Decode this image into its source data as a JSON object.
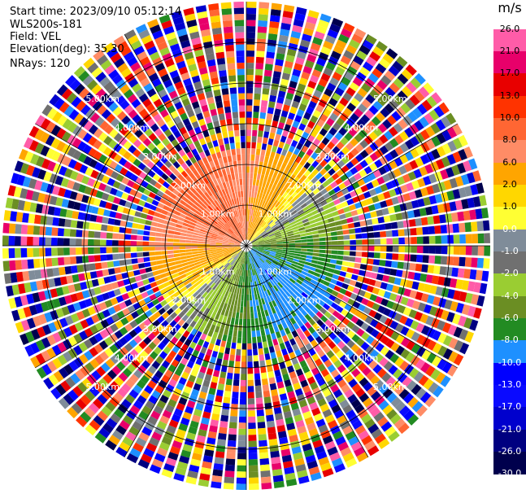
{
  "header": {
    "start_time": "Start time: 2023/09/10 05:12:14",
    "instrument": "WLS200s-181",
    "field": "Field: VEL",
    "elevation": "Elevation(deg): 35.30",
    "nrays": "NRays: 120"
  },
  "colorbar": {
    "unit": "m/s",
    "ticks": [
      "26.0",
      "21.0",
      "17.0",
      "13.0",
      "10.0",
      "8.0",
      "6.0",
      "2.0",
      "1.0",
      "0.0",
      "-1.0",
      "-2.0",
      "-4.0",
      "-6.0",
      "-8.0",
      "-10.0",
      "-13.0",
      "-17.0",
      "-21.0",
      "-26.0",
      "-30.0"
    ],
    "colors": [
      "#ff5ca8",
      "#e8006a",
      "#e80000",
      "#ff3300",
      "#ff6633",
      "#ff8c66",
      "#ffa500",
      "#ffd700",
      "#ffff33",
      "#7f8c99",
      "#707070",
      "#9acd32",
      "#6b8e23",
      "#228b22",
      "#1e90ff",
      "#0000ff",
      "#0a0aff",
      "#0000cd",
      "#000080",
      "#00004d"
    ]
  },
  "chart_data": {
    "type": "ppi",
    "field": "VEL",
    "units": "m/s",
    "nrays": 120,
    "elevation_deg": 35.3,
    "range_rings_km": [
      1.0,
      2.0,
      3.0,
      4.0,
      5.0
    ],
    "ring_labels": [
      "1.00km",
      "2.00km",
      "3.00km",
      "4.00km",
      "5.00km"
    ],
    "max_range_km": 6.0,
    "color_scale_min": -30.0,
    "color_scale_max": 30.0,
    "pattern": "Approaching (blue/green) velocities toward the south-east sector; receding (orange/yellow) toward the west/north-west; noisy multicolor returns beyond ~2.2 km"
  }
}
